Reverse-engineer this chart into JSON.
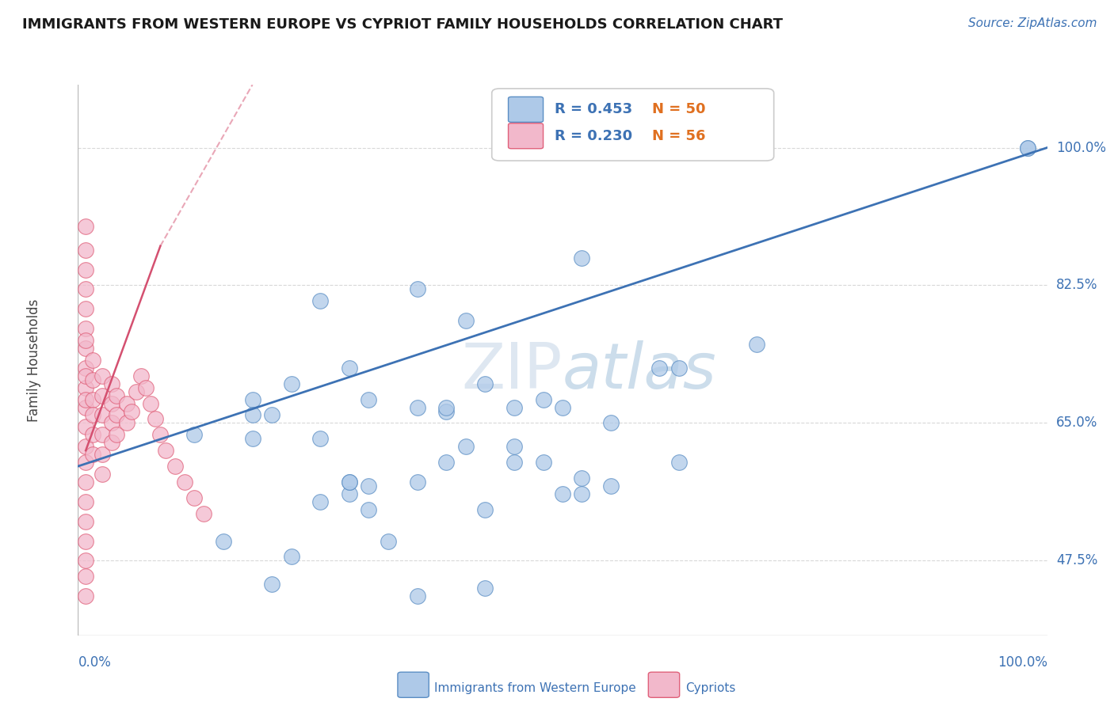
{
  "title": "IMMIGRANTS FROM WESTERN EUROPE VS CYPRIOT FAMILY HOUSEHOLDS CORRELATION CHART",
  "source": "Source: ZipAtlas.com",
  "ylabel": "Family Households",
  "yticks": [
    0.475,
    0.65,
    0.825,
    1.0
  ],
  "ytick_labels": [
    "47.5%",
    "65.0%",
    "82.5%",
    "100.0%"
  ],
  "xtick_left": "0.0%",
  "xtick_right": "100.0%",
  "legend_blue_r": "R = 0.453",
  "legend_blue_n": "N = 50",
  "legend_pink_r": "R = 0.230",
  "legend_pink_n": "N = 56",
  "legend_label_blue": "Immigrants from Western Europe",
  "legend_label_pink": "Cypriots",
  "blue_fill": "#aec9e8",
  "blue_edge": "#5b8ec4",
  "pink_fill": "#f2b8cb",
  "pink_edge": "#e0607a",
  "blue_line_color": "#3d72b4",
  "pink_line_color": "#d45070",
  "legend_r_color": "#3d72b4",
  "legend_n_color": "#e07020",
  "watermark_zip": "ZIP",
  "watermark_atlas": "atlas",
  "grid_color": "#d8d8d8",
  "title_color": "#1a1a1a",
  "ylabel_color": "#444444",
  "tick_color": "#3d72b4",
  "xlim": [
    0.0,
    1.0
  ],
  "ylim": [
    0.38,
    1.08
  ],
  "blue_line_x0": 0.0,
  "blue_line_y0": 0.595,
  "blue_line_x1": 1.0,
  "blue_line_y1": 1.0,
  "pink_line_x0": 0.008,
  "pink_line_y0": 0.615,
  "pink_line_x1": 0.085,
  "pink_line_y1": 0.875,
  "blue_scatter_x": [
    0.12,
    0.38,
    0.52,
    0.98,
    0.22,
    0.18,
    0.28,
    0.35,
    0.42,
    0.45,
    0.48,
    0.5,
    0.28,
    0.32,
    0.38,
    0.2,
    0.3,
    0.45,
    0.52,
    0.6,
    0.18,
    0.25,
    0.35,
    0.4,
    0.55,
    0.25,
    0.3,
    0.22,
    0.4,
    0.48,
    0.15,
    0.28,
    0.42,
    0.38,
    0.62,
    0.35,
    0.5,
    0.2,
    0.45,
    0.55,
    0.3,
    0.25,
    0.18,
    0.62,
    0.7,
    0.35,
    0.28,
    0.52,
    0.42,
    0.98
  ],
  "blue_scatter_y": [
    0.635,
    0.665,
    0.86,
    1.0,
    0.7,
    0.68,
    0.72,
    0.67,
    0.7,
    0.67,
    0.68,
    0.67,
    0.56,
    0.5,
    0.67,
    0.66,
    0.68,
    0.6,
    0.58,
    0.72,
    0.66,
    0.805,
    0.82,
    0.78,
    0.65,
    0.55,
    0.57,
    0.48,
    0.62,
    0.6,
    0.5,
    0.575,
    0.54,
    0.6,
    0.6,
    0.575,
    0.56,
    0.445,
    0.62,
    0.57,
    0.54,
    0.63,
    0.63,
    0.72,
    0.75,
    0.43,
    0.575,
    0.56,
    0.44,
    1.0
  ],
  "pink_scatter_x": [
    0.008,
    0.008,
    0.008,
    0.008,
    0.008,
    0.008,
    0.008,
    0.008,
    0.008,
    0.008,
    0.008,
    0.008,
    0.008,
    0.008,
    0.008,
    0.008,
    0.008,
    0.008,
    0.008,
    0.008,
    0.015,
    0.015,
    0.015,
    0.015,
    0.015,
    0.015,
    0.025,
    0.025,
    0.025,
    0.025,
    0.025,
    0.025,
    0.035,
    0.035,
    0.035,
    0.035,
    0.04,
    0.04,
    0.04,
    0.05,
    0.05,
    0.055,
    0.06,
    0.065,
    0.07,
    0.075,
    0.08,
    0.085,
    0.09,
    0.1,
    0.11,
    0.12,
    0.13,
    0.008,
    0.008,
    0.008
  ],
  "pink_scatter_y": [
    0.9,
    0.87,
    0.845,
    0.82,
    0.795,
    0.77,
    0.745,
    0.72,
    0.695,
    0.67,
    0.645,
    0.62,
    0.6,
    0.575,
    0.55,
    0.525,
    0.5,
    0.475,
    0.71,
    0.68,
    0.73,
    0.705,
    0.68,
    0.66,
    0.635,
    0.61,
    0.71,
    0.685,
    0.66,
    0.635,
    0.61,
    0.585,
    0.7,
    0.675,
    0.65,
    0.625,
    0.685,
    0.66,
    0.635,
    0.675,
    0.65,
    0.665,
    0.69,
    0.71,
    0.695,
    0.675,
    0.655,
    0.635,
    0.615,
    0.595,
    0.575,
    0.555,
    0.535,
    0.455,
    0.43,
    0.755
  ]
}
